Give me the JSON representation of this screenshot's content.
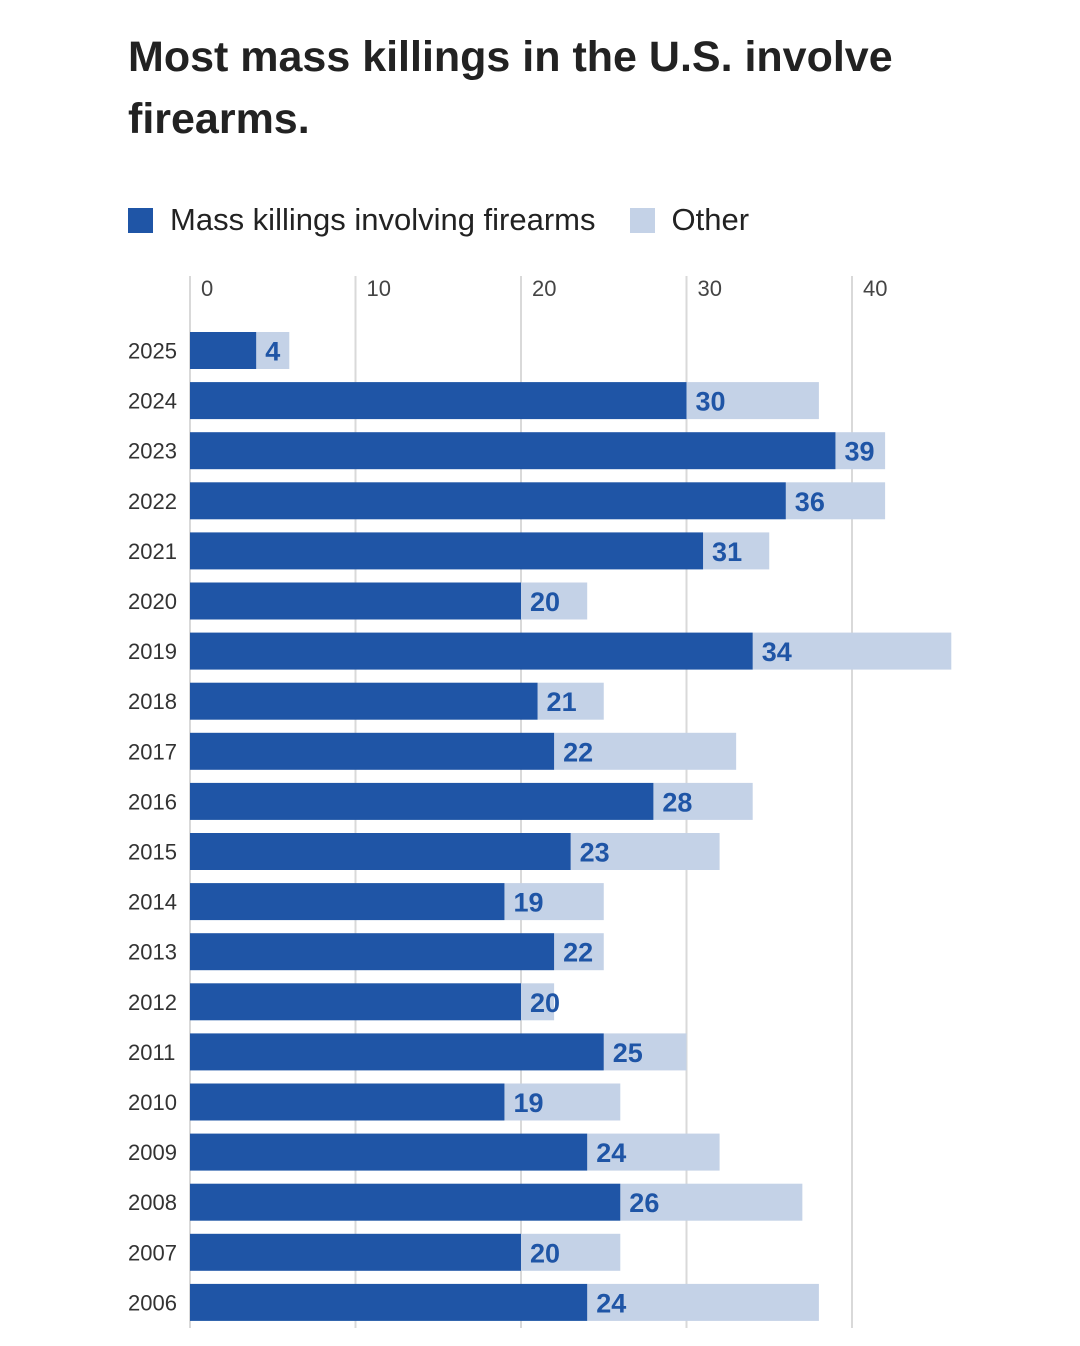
{
  "chart_data": {
    "type": "bar",
    "orientation": "horizontal",
    "stacked": true,
    "title": "Most mass killings in the U.S. involve firearms.",
    "legend_placement": "top-left",
    "series": [
      {
        "name": "Mass killings involving firearms",
        "color": "#1f55a6",
        "values": [
          4,
          30,
          39,
          36,
          31,
          20,
          34,
          21,
          22,
          28,
          23,
          19,
          22,
          20,
          25,
          19,
          24,
          26,
          20,
          24
        ]
      },
      {
        "name": "Other",
        "color": "#c4d2e7",
        "values": [
          2,
          8,
          3,
          6,
          4,
          4,
          12,
          4,
          11,
          6,
          9,
          6,
          3,
          2,
          5,
          7,
          8,
          11,
          6,
          14
        ]
      }
    ],
    "categories": [
      "2025",
      "2024",
      "2023",
      "2022",
      "2021",
      "2020",
      "2019",
      "2018",
      "2017",
      "2016",
      "2015",
      "2014",
      "2013",
      "2012",
      "2011",
      "2010",
      "2009",
      "2008",
      "2007",
      "2006"
    ],
    "xlim": [
      0,
      46
    ],
    "xticks": [
      0,
      10,
      20,
      30,
      40
    ],
    "grid": true
  }
}
